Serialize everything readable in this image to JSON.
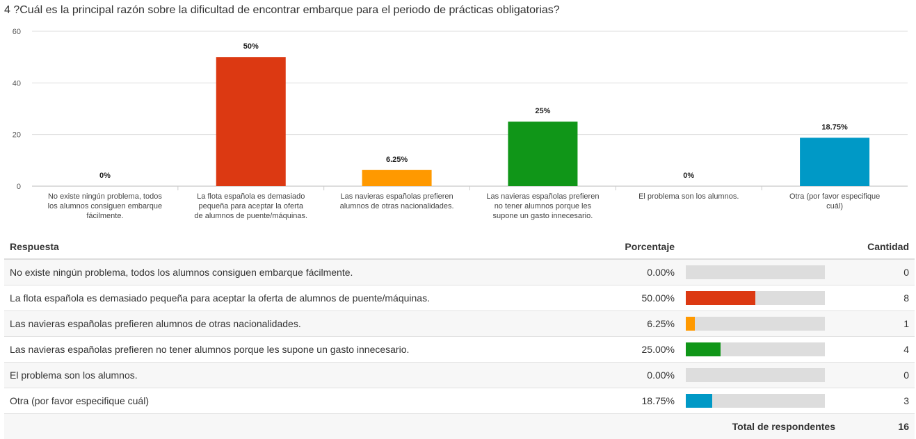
{
  "question": {
    "title": "4 ?Cuál es la principal razón sobre la dificultad de encontrar embarque para el periodo de prácticas obligatorias?"
  },
  "chart_data": {
    "type": "bar",
    "categories": [
      "No existe ningún problema, todos los alumnos consiguen embarque fácilmente.",
      "La flota española es demasiado pequeña para aceptar la oferta de alumnos de puente/máquinas.",
      "Las navieras españolas prefieren alumnos de otras nacionalidades.",
      "Las navieras españolas prefieren no tener alumnos porque les supone un gasto innecesario.",
      "El problema son los alumnos.",
      "Otra (por favor especifique cuál)"
    ],
    "values": [
      0,
      50,
      6.25,
      25,
      0,
      18.75
    ],
    "data_labels": [
      "0%",
      "50%",
      "6.25%",
      "25%",
      "0%",
      "18.75%"
    ],
    "colors": [
      "#3366cc",
      "#dc3912",
      "#ff9900",
      "#109618",
      "#990099",
      "#0099c6"
    ],
    "ylim": [
      0,
      60
    ],
    "yticks": [
      "0",
      "20",
      "40",
      "60"
    ],
    "grid": true,
    "xlabel": "",
    "ylabel": ""
  },
  "table": {
    "headers": {
      "answer": "Respuesta",
      "percent": "Porcentaje",
      "count": "Cantidad"
    },
    "rows": [
      {
        "answer": "No existe ningún problema, todos los alumnos consiguen embarque fácilmente.",
        "percent": "0.00%",
        "share": 0,
        "count": "0",
        "color": "#3366cc"
      },
      {
        "answer": "La flota española es demasiado pequeña para aceptar la oferta de alumnos de puente/máquinas.",
        "percent": "50.00%",
        "share": 0.5,
        "count": "8",
        "color": "#dc3912"
      },
      {
        "answer": "Las navieras españolas prefieren alumnos de otras nacionalidades.",
        "percent": "6.25%",
        "share": 0.0625,
        "count": "1",
        "color": "#ff9900"
      },
      {
        "answer": "Las navieras españolas prefieren no tener alumnos porque les supone un gasto innecesario.",
        "percent": "25.00%",
        "share": 0.25,
        "count": "4",
        "color": "#109618"
      },
      {
        "answer": "El problema son los alumnos.",
        "percent": "0.00%",
        "share": 0,
        "count": "0",
        "color": "#990099"
      },
      {
        "answer": "Otra (por favor especifique cuál)",
        "percent": "18.75%",
        "share": 0.1875,
        "count": "3",
        "color": "#0099c6"
      }
    ],
    "total_label": "Total de respondentes",
    "total_value": "16"
  }
}
